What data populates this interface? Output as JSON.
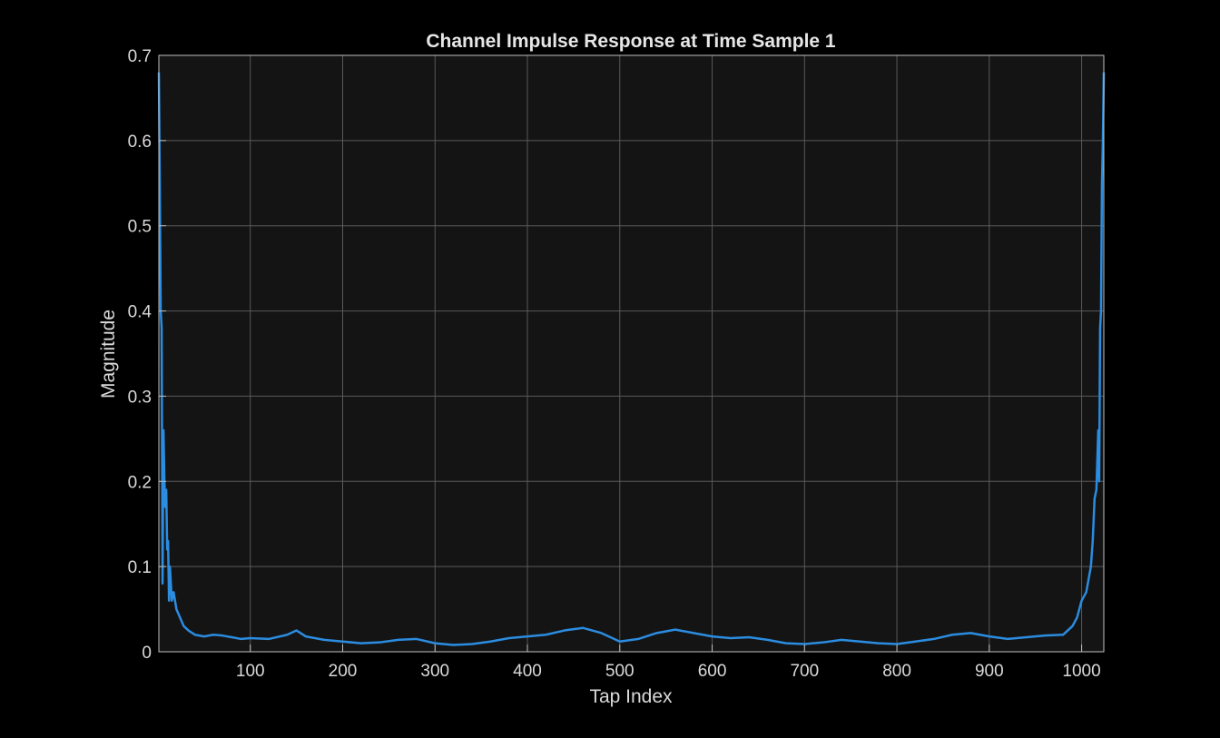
{
  "chart_data": {
    "type": "line",
    "title": "Channel Impulse Response at Time Sample 1",
    "xlabel": "Tap Index",
    "ylabel": "Magnitude",
    "xlim": [
      1,
      1024
    ],
    "ylim": [
      0,
      0.7
    ],
    "xticks": [
      100,
      200,
      300,
      400,
      500,
      600,
      700,
      800,
      900,
      1000
    ],
    "yticks": [
      0,
      0.1,
      0.2,
      0.3,
      0.4,
      0.5,
      0.6,
      0.7
    ],
    "grid": true,
    "colors": {
      "line": "#2b8ce0",
      "plot_background": "#141414",
      "figure_background": "#000000"
    },
    "series": [
      {
        "x": [
          1,
          2,
          3,
          4,
          5,
          6,
          7,
          8,
          9,
          10,
          11,
          12,
          13,
          15,
          17,
          20,
          24,
          28,
          33,
          40,
          50,
          60,
          70,
          80,
          90,
          100,
          120,
          140,
          150,
          160,
          180,
          200,
          220,
          240,
          260,
          280,
          300,
          320,
          340,
          360,
          380,
          400,
          420,
          440,
          460,
          480,
          500,
          520,
          540,
          560,
          580,
          600,
          620,
          640,
          660,
          680,
          700,
          720,
          740,
          760,
          780,
          800,
          820,
          840,
          860,
          880,
          900,
          920,
          940,
          960,
          980,
          990,
          995,
          1000,
          1005,
          1010,
          1012,
          1014,
          1016,
          1018,
          1019,
          1020,
          1021,
          1022,
          1023,
          1024
        ],
        "y": [
          0.68,
          0.55,
          0.4,
          0.38,
          0.08,
          0.26,
          0.2,
          0.17,
          0.19,
          0.12,
          0.13,
          0.06,
          0.1,
          0.06,
          0.07,
          0.05,
          0.04,
          0.03,
          0.025,
          0.02,
          0.018,
          0.02,
          0.019,
          0.017,
          0.015,
          0.016,
          0.015,
          0.02,
          0.025,
          0.018,
          0.014,
          0.012,
          0.01,
          0.011,
          0.014,
          0.015,
          0.01,
          0.008,
          0.009,
          0.012,
          0.016,
          0.018,
          0.02,
          0.025,
          0.028,
          0.022,
          0.012,
          0.015,
          0.022,
          0.026,
          0.022,
          0.018,
          0.016,
          0.017,
          0.014,
          0.01,
          0.009,
          0.011,
          0.014,
          0.012,
          0.01,
          0.009,
          0.012,
          0.015,
          0.02,
          0.022,
          0.018,
          0.015,
          0.017,
          0.019,
          0.02,
          0.03,
          0.04,
          0.06,
          0.07,
          0.1,
          0.13,
          0.18,
          0.19,
          0.26,
          0.2,
          0.38,
          0.4,
          0.55,
          0.6,
          0.68
        ]
      }
    ]
  }
}
